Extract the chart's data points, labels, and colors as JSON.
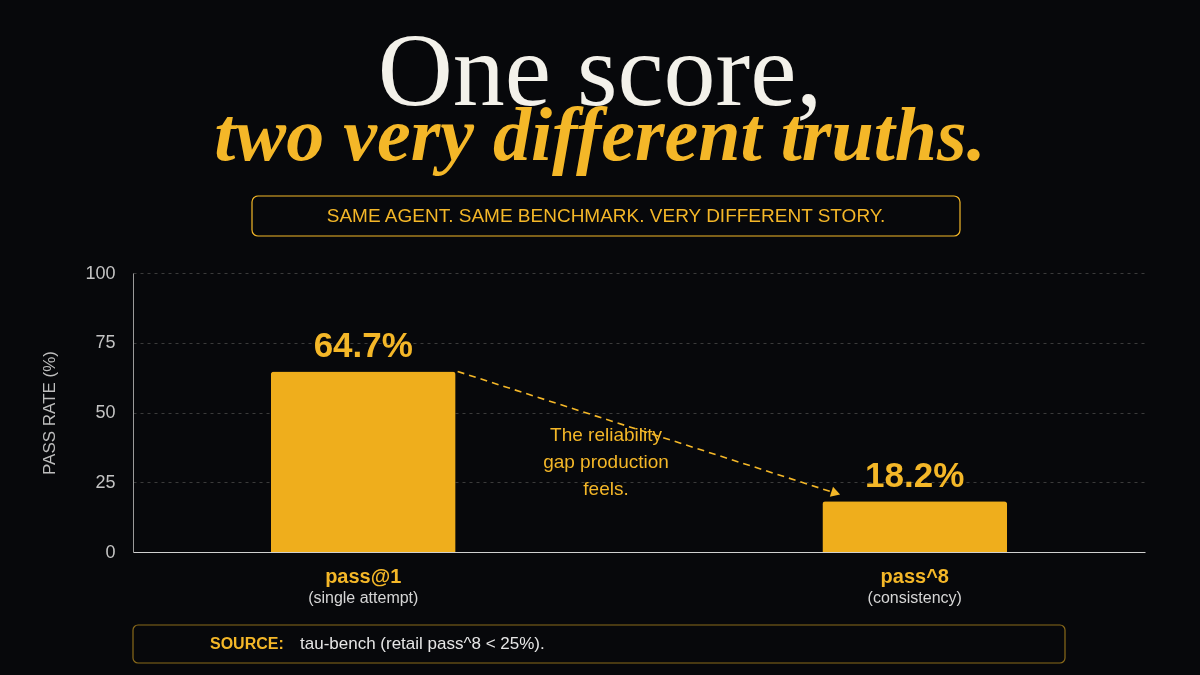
{
  "chart_data": {
    "type": "bar",
    "title": "One score,\ntwo very different truths.",
    "subtitle": "SAME AGENT. SAME BENCHMARK. VERY DIFFERENT STORY.",
    "ylabel": "PASS RATE (%)",
    "categories": [
      "pass@1\n(single attempt)",
      "pass^8\n(consistency)"
    ],
    "values": [
      64.7,
      18.2
    ],
    "value_labels": [
      "64.7%",
      "18.2%"
    ],
    "color": "#efae1c",
    "ylim": [
      0,
      100
    ],
    "yticks": [
      0,
      25,
      50,
      75,
      100
    ],
    "grid": "y",
    "annotations": [
      "The reliability\ngap production\nfeels.",
      "SOURCE: tau-bench (retail pass^8 < 25%)."
    ]
  }
}
